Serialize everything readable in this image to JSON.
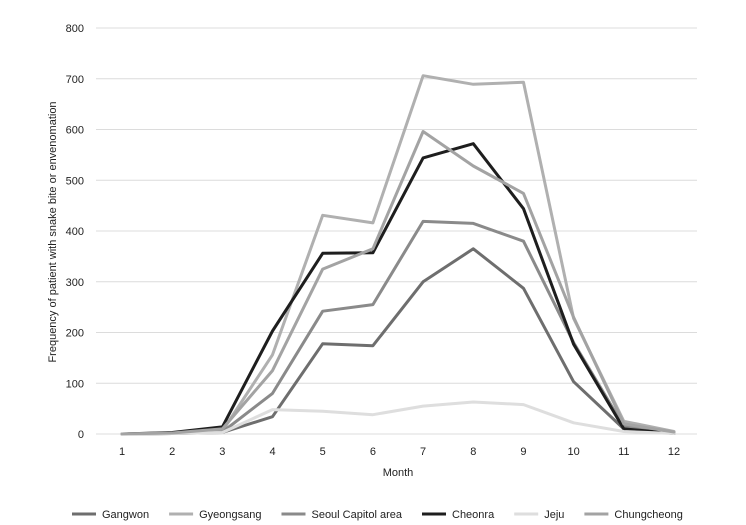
{
  "chart_data": {
    "type": "line",
    "title": "",
    "xlabel": "Month",
    "ylabel": "Frequency of patient with snake bite or envenomation",
    "x": [
      1,
      2,
      3,
      4,
      5,
      6,
      7,
      8,
      9,
      10,
      11,
      12
    ],
    "x_tick_labels": [
      "1",
      "2",
      "3",
      "4",
      "5",
      "6",
      "7",
      "8",
      "9",
      "10",
      "11",
      "12"
    ],
    "y_tick_labels": [
      "0",
      "100",
      "200",
      "300",
      "400",
      "500",
      "600",
      "700",
      "800"
    ],
    "ylim": [
      0,
      800
    ],
    "grid": true,
    "legend_position": "bottom",
    "series": [
      {
        "name": "Gangwon",
        "color": "#6e6e6e",
        "values": [
          0,
          1,
          3,
          34,
          178,
          174,
          300,
          365,
          287,
          103,
          10,
          2
        ]
      },
      {
        "name": "Gyeongsang",
        "color": "#b0b0b0",
        "values": [
          0,
          2,
          6,
          156,
          431,
          416,
          706,
          689,
          693,
          228,
          25,
          5
        ]
      },
      {
        "name": "Seoul Capitol area",
        "color": "#8a8a8a",
        "values": [
          0,
          1,
          4,
          80,
          242,
          255,
          419,
          415,
          380,
          180,
          15,
          3
        ]
      },
      {
        "name": "Cheonra",
        "color": "#1e1e1e",
        "values": [
          0,
          3,
          14,
          203,
          356,
          357,
          544,
          572,
          444,
          177,
          10,
          1
        ]
      },
      {
        "name": "Jeju",
        "color": "#dedede",
        "values": [
          0,
          1,
          3,
          48,
          45,
          38,
          55,
          63,
          58,
          22,
          5,
          1
        ]
      },
      {
        "name": "Chungcheong",
        "color": "#a3a3a3",
        "values": [
          0,
          2,
          10,
          125,
          325,
          365,
          596,
          528,
          474,
          230,
          20,
          4
        ]
      }
    ]
  }
}
